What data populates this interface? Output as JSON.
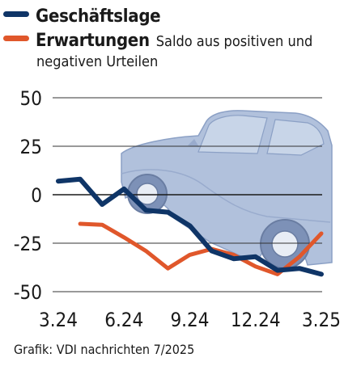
{
  "chart_data": {
    "type": "line",
    "title": "",
    "xlabel": "",
    "ylabel": "",
    "x_tick_labels": [
      "3.24",
      "6.24",
      "9.24",
      "12.24",
      "3.25"
    ],
    "x_ticks_month_index": [
      0,
      3,
      6,
      9,
      12
    ],
    "y_ticks": [
      50,
      25,
      0,
      -25,
      -50
    ],
    "y_tick_labels": [
      "50",
      "25",
      "0",
      "-25",
      "-50"
    ],
    "ylim": [
      -50,
      50
    ],
    "grid": "horizontal",
    "legend_position": "top-left",
    "series": [
      {
        "name": "Geschäftslage",
        "color": "#0f3567",
        "points": [
          [
            0,
            7
          ],
          [
            1,
            8
          ],
          [
            2,
            -5
          ],
          [
            3,
            3
          ],
          [
            4,
            -8
          ],
          [
            5,
            -9
          ],
          [
            6,
            -16
          ],
          [
            7,
            -29
          ],
          [
            8,
            -33
          ],
          [
            9,
            -32
          ],
          [
            10,
            -39
          ],
          [
            11,
            -38
          ],
          [
            12,
            -41
          ]
        ]
      },
      {
        "name": "Erwartungen",
        "color": "#e0572b",
        "points": [
          [
            1,
            -15
          ],
          [
            2,
            -15.5
          ],
          [
            3,
            -22
          ],
          [
            4,
            -29
          ],
          [
            5,
            -38
          ],
          [
            6,
            -31
          ],
          [
            7,
            -28
          ],
          [
            8,
            -31
          ],
          [
            9,
            -37
          ],
          [
            10,
            -41
          ],
          [
            11,
            -32
          ],
          [
            12,
            -20
          ]
        ]
      }
    ]
  },
  "legend": {
    "description_line1": "Saldo aus positiven und",
    "description_line2": "negativen Urteilen"
  },
  "credit": "Grafik: VDI nachrichten 7/2025",
  "colors": {
    "car_fill": "#a9bbd9",
    "car_stroke": "#7f96bf",
    "grid": "#333333"
  }
}
